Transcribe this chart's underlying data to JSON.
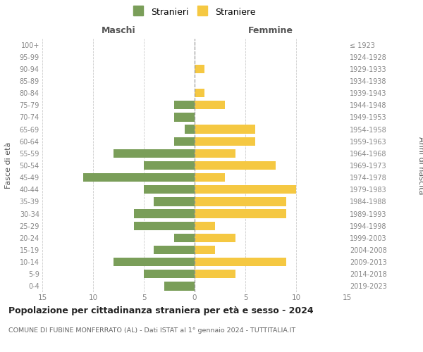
{
  "age_groups": [
    "0-4",
    "5-9",
    "10-14",
    "15-19",
    "20-24",
    "25-29",
    "30-34",
    "35-39",
    "40-44",
    "45-49",
    "50-54",
    "55-59",
    "60-64",
    "65-69",
    "70-74",
    "75-79",
    "80-84",
    "85-89",
    "90-94",
    "95-99",
    "100+"
  ],
  "birth_years": [
    "2019-2023",
    "2014-2018",
    "2009-2013",
    "2004-2008",
    "1999-2003",
    "1994-1998",
    "1989-1993",
    "1984-1988",
    "1979-1983",
    "1974-1978",
    "1969-1973",
    "1964-1968",
    "1959-1963",
    "1954-1958",
    "1949-1953",
    "1944-1948",
    "1939-1943",
    "1934-1938",
    "1929-1933",
    "1924-1928",
    "≤ 1923"
  ],
  "males": [
    3,
    5,
    8,
    4,
    2,
    6,
    6,
    4,
    5,
    11,
    5,
    8,
    2,
    1,
    2,
    2,
    0,
    0,
    0,
    0,
    0
  ],
  "females": [
    0,
    4,
    9,
    2,
    4,
    2,
    9,
    9,
    10,
    3,
    8,
    4,
    6,
    6,
    0,
    3,
    1,
    0,
    1,
    0,
    0
  ],
  "male_color": "#7a9e59",
  "female_color": "#f5c842",
  "title": "Popolazione per cittadinanza straniera per età e sesso - 2024",
  "subtitle": "COMUNE DI FUBINE MONFERRATO (AL) - Dati ISTAT al 1° gennaio 2024 - TUTTITALIA.IT",
  "xlabel_left": "Maschi",
  "xlabel_right": "Femmine",
  "ylabel_left": "Fasce di età",
  "ylabel_right": "Anni di nascita",
  "legend_male": "Stranieri",
  "legend_female": "Straniere",
  "xlim": 15,
  "background_color": "#ffffff",
  "grid_color": "#cccccc",
  "tick_label_color": "#888888",
  "header_color": "#555555"
}
